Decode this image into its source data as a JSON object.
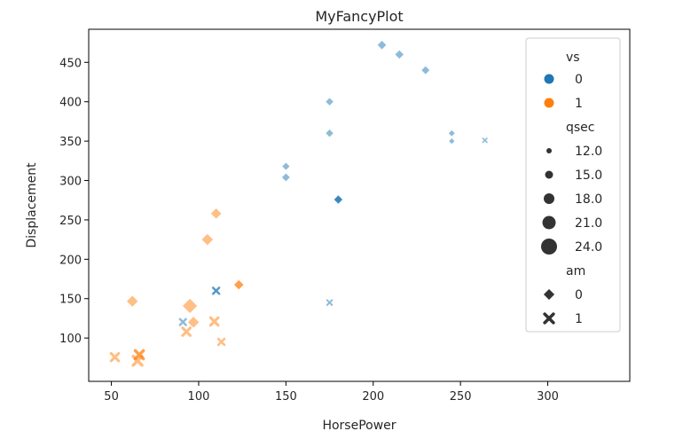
{
  "chart_data": {
    "type": "scatter",
    "title": "MyFancyPlot",
    "xlabel": "HorsePower",
    "ylabel": "Displacement",
    "xlim": [
      37,
      347
    ],
    "ylim": [
      45,
      492
    ],
    "xticks": [
      50,
      100,
      150,
      200,
      250,
      300
    ],
    "yticks": [
      100,
      150,
      200,
      250,
      300,
      350,
      400,
      450
    ],
    "grid": false,
    "legend_position": "top-right",
    "colors": {
      "vs0": "#1f77b4",
      "vs1": "#ff7f0e"
    },
    "legend": {
      "hue_title": "vs",
      "hue_entries": [
        {
          "label": "0",
          "color": "#1f77b4"
        },
        {
          "label": "1",
          "color": "#ff7f0e"
        }
      ],
      "size_title": "qsec",
      "size_entries": [
        "12.0",
        "15.0",
        "18.0",
        "21.0",
        "24.0"
      ],
      "style_title": "am",
      "style_entries": [
        {
          "label": "0",
          "marker": "diamond"
        },
        {
          "label": "1",
          "marker": "x"
        }
      ]
    },
    "points": [
      {
        "x": 110,
        "y": 160,
        "vs": 0,
        "qsec": 16.46,
        "am": 1
      },
      {
        "x": 110,
        "y": 160,
        "vs": 0,
        "qsec": 17.02,
        "am": 1
      },
      {
        "x": 93,
        "y": 108,
        "vs": 1,
        "qsec": 18.61,
        "am": 1
      },
      {
        "x": 110,
        "y": 258,
        "vs": 1,
        "qsec": 19.44,
        "am": 0
      },
      {
        "x": 175,
        "y": 360,
        "vs": 0,
        "qsec": 17.02,
        "am": 0
      },
      {
        "x": 105,
        "y": 225,
        "vs": 1,
        "qsec": 20.22,
        "am": 0
      },
      {
        "x": 245,
        "y": 360,
        "vs": 0,
        "qsec": 15.84,
        "am": 0
      },
      {
        "x": 62,
        "y": 146.7,
        "vs": 1,
        "qsec": 20.0,
        "am": 0
      },
      {
        "x": 95,
        "y": 140.8,
        "vs": 1,
        "qsec": 22.9,
        "am": 0
      },
      {
        "x": 123,
        "y": 167.6,
        "vs": 1,
        "qsec": 18.3,
        "am": 0
      },
      {
        "x": 123,
        "y": 167.6,
        "vs": 1,
        "qsec": 18.9,
        "am": 0
      },
      {
        "x": 180,
        "y": 275.8,
        "vs": 0,
        "qsec": 17.4,
        "am": 0
      },
      {
        "x": 180,
        "y": 275.8,
        "vs": 0,
        "qsec": 17.6,
        "am": 0
      },
      {
        "x": 180,
        "y": 275.8,
        "vs": 0,
        "qsec": 18.0,
        "am": 0
      },
      {
        "x": 205,
        "y": 472,
        "vs": 0,
        "qsec": 17.98,
        "am": 0
      },
      {
        "x": 215,
        "y": 460,
        "vs": 0,
        "qsec": 17.82,
        "am": 0
      },
      {
        "x": 230,
        "y": 440,
        "vs": 0,
        "qsec": 17.42,
        "am": 0
      },
      {
        "x": 66,
        "y": 78.7,
        "vs": 1,
        "qsec": 19.47,
        "am": 1
      },
      {
        "x": 52,
        "y": 75.7,
        "vs": 1,
        "qsec": 18.52,
        "am": 1
      },
      {
        "x": 65,
        "y": 71.1,
        "vs": 1,
        "qsec": 19.9,
        "am": 1
      },
      {
        "x": 97,
        "y": 120.1,
        "vs": 1,
        "qsec": 20.01,
        "am": 0
      },
      {
        "x": 150,
        "y": 318,
        "vs": 0,
        "qsec": 16.87,
        "am": 0
      },
      {
        "x": 150,
        "y": 304,
        "vs": 0,
        "qsec": 17.3,
        "am": 0
      },
      {
        "x": 245,
        "y": 350,
        "vs": 0,
        "qsec": 15.41,
        "am": 0
      },
      {
        "x": 175,
        "y": 400,
        "vs": 0,
        "qsec": 17.05,
        "am": 0
      },
      {
        "x": 66,
        "y": 79,
        "vs": 1,
        "qsec": 18.9,
        "am": 1
      },
      {
        "x": 91,
        "y": 120.3,
        "vs": 0,
        "qsec": 16.7,
        "am": 1
      },
      {
        "x": 113,
        "y": 95.1,
        "vs": 1,
        "qsec": 16.9,
        "am": 1
      },
      {
        "x": 264,
        "y": 351,
        "vs": 0,
        "qsec": 14.5,
        "am": 1
      },
      {
        "x": 175,
        "y": 145,
        "vs": 0,
        "qsec": 15.5,
        "am": 1
      },
      {
        "x": 109,
        "y": 121,
        "vs": 1,
        "qsec": 18.6,
        "am": 1
      }
    ]
  }
}
